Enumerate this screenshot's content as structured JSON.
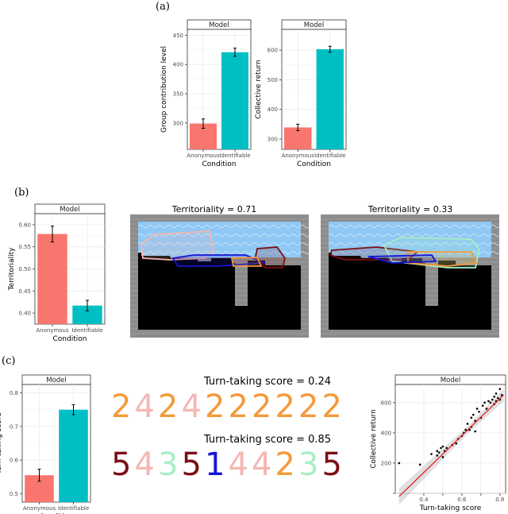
{
  "panel_labels": [
    "(a)",
    "(b)",
    "(c)"
  ],
  "colors": {
    "anonymous": "#F8766D",
    "identifiable": "#00BFC4",
    "panel_bg": "#ffffff",
    "grid": "#ebebeb",
    "strip_bg": "#ffffff",
    "regression": "#e41a1c"
  },
  "chart_data": [
    {
      "id": "a-left",
      "type": "bar",
      "strip": "Model",
      "categories": [
        "Anonymous",
        "Identifiable"
      ],
      "values": [
        299,
        421
      ],
      "errors": [
        8,
        7
      ],
      "ylim": [
        255,
        460
      ],
      "yticks": [
        300,
        350,
        400,
        450
      ],
      "xlabel": "Condition",
      "ylabel": "Group contribution level"
    },
    {
      "id": "a-right",
      "type": "bar",
      "strip": "Model",
      "categories": [
        "Anonymous",
        "Identifiable"
      ],
      "values": [
        339,
        603
      ],
      "errors": [
        11,
        10
      ],
      "ylim": [
        265,
        670
      ],
      "yticks": [
        300,
        400,
        500,
        600
      ],
      "xlabel": "Condition",
      "ylabel": "Collective return"
    },
    {
      "id": "b",
      "type": "bar",
      "strip": "Model",
      "categories": [
        "Anonymous",
        "Identifiable"
      ],
      "values": [
        0.579,
        0.417
      ],
      "errors": [
        0.018,
        0.012
      ],
      "ylim": [
        0.375,
        0.625
      ],
      "yticks": [
        0.4,
        0.45,
        0.5,
        0.55,
        0.6
      ],
      "ytick_labels": [
        "0.40",
        "0.45",
        "0.50",
        "0.55",
        "0.60"
      ],
      "xlabel": "Condition",
      "ylabel": "Territoriality"
    },
    {
      "id": "c-left",
      "type": "bar",
      "strip": "Model",
      "categories": [
        "Anonymous",
        "Identifiable"
      ],
      "values": [
        0.555,
        0.75
      ],
      "errors": [
        0.018,
        0.015
      ],
      "ylim": [
        0.475,
        0.825
      ],
      "yticks": [
        0.5,
        0.6,
        0.7,
        0.8
      ],
      "ytick_labels": [
        "0.5",
        "0.6",
        "0.7",
        "0.8"
      ],
      "xlabel": "Condition",
      "ylabel": "Turn-taking score"
    },
    {
      "id": "c-right",
      "type": "scatter",
      "strip": "Model",
      "xlabel": "Turn-taking score",
      "ylabel": "Collective return",
      "xlim": [
        0.25,
        0.83
      ],
      "ylim": [
        0,
        720
      ],
      "xticks": [
        0.4,
        0.5,
        0.6,
        0.7,
        0.8
      ],
      "yticks": [
        0,
        200,
        400,
        600
      ],
      "xtick_labels": [
        "0.4",
        "",
        "0.6",
        "",
        "0.8"
      ],
      "ytick_labels": [
        "",
        "200",
        "400",
        "600"
      ],
      "points": [
        [
          0.27,
          200
        ],
        [
          0.38,
          190
        ],
        [
          0.44,
          260
        ],
        [
          0.47,
          250
        ],
        [
          0.47,
          280
        ],
        [
          0.48,
          270
        ],
        [
          0.49,
          300
        ],
        [
          0.5,
          240
        ],
        [
          0.5,
          310
        ],
        [
          0.51,
          280
        ],
        [
          0.52,
          300
        ],
        [
          0.55,
          320
        ],
        [
          0.57,
          330
        ],
        [
          0.58,
          360
        ],
        [
          0.6,
          380
        ],
        [
          0.61,
          400
        ],
        [
          0.62,
          420
        ],
        [
          0.63,
          460
        ],
        [
          0.64,
          420
        ],
        [
          0.65,
          440
        ],
        [
          0.65,
          500
        ],
        [
          0.66,
          520
        ],
        [
          0.67,
          480
        ],
        [
          0.67,
          410
        ],
        [
          0.68,
          560
        ],
        [
          0.69,
          540
        ],
        [
          0.7,
          500
        ],
        [
          0.71,
          580
        ],
        [
          0.72,
          600
        ],
        [
          0.73,
          560
        ],
        [
          0.74,
          610
        ],
        [
          0.75,
          600
        ],
        [
          0.76,
          620
        ],
        [
          0.77,
          590
        ],
        [
          0.77,
          640
        ],
        [
          0.78,
          610
        ],
        [
          0.78,
          660
        ],
        [
          0.79,
          630
        ],
        [
          0.8,
          620
        ],
        [
          0.8,
          690
        ],
        [
          0.81,
          650
        ]
      ],
      "fit": {
        "intercept": -350,
        "slope": 1220,
        "x_range": [
          0.27,
          0.82
        ]
      }
    }
  ],
  "territoriality_scenes": [
    {
      "title": "Territoriality = 0.71"
    },
    {
      "title": "Territoriality = 0.33"
    }
  ],
  "turn_taking": [
    {
      "title": "Turn-taking score = 0.24",
      "digits": [
        "2",
        "4",
        "2",
        "4",
        "2",
        "2",
        "2",
        "2",
        "2",
        "2"
      ],
      "colors": [
        "#F39A3A",
        "#F4B7B2",
        "#F39A3A",
        "#F4B7B2",
        "#F39A3A",
        "#F39A3A",
        "#F39A3A",
        "#F39A3A",
        "#F39A3A",
        "#F39A3A"
      ]
    },
    {
      "title": "Turn-taking score = 0.85",
      "digits": [
        "5",
        "4",
        "3",
        "5",
        "1",
        "4",
        "4",
        "2",
        "3",
        "5"
      ],
      "colors": [
        "#7A0F14",
        "#F4B7B2",
        "#A8EEC5",
        "#7A0F14",
        "#1515D6",
        "#F4B7B2",
        "#F4B7B2",
        "#F39A3A",
        "#A8EEC5",
        "#7A0F14"
      ]
    }
  ]
}
